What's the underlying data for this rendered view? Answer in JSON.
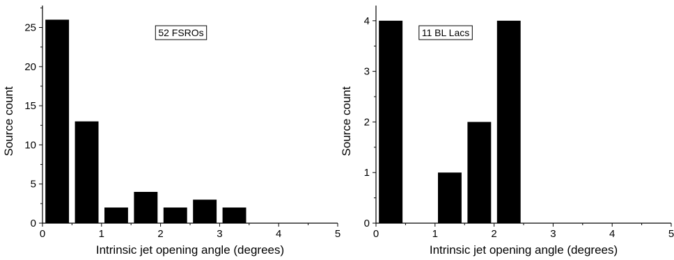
{
  "chart_data": [
    {
      "type": "bar",
      "xlabel": "Intrinsic jet opening angle (degrees)",
      "ylabel": "Source count",
      "xlim": [
        0,
        5
      ],
      "ylim": [
        0,
        27.8
      ],
      "xticks": [
        "0",
        "1",
        "2",
        "3",
        "4",
        "5"
      ],
      "yticks": [
        "0",
        "5",
        "10",
        "15",
        "20",
        "25"
      ],
      "ytick_values": [
        0,
        5,
        10,
        15,
        20,
        25
      ],
      "minor_y_step": 2.5,
      "bin_width": 0.5,
      "bar_width_fraction": 0.8,
      "bin_starts": [
        0,
        0.5,
        1.0,
        1.5,
        2.0,
        2.5,
        3.0
      ],
      "values": [
        26,
        13,
        2,
        4,
        2,
        3,
        2
      ],
      "annotation": "52 FSROs",
      "bar_color": "#000000"
    },
    {
      "type": "bar",
      "xlabel": "Intrinsic jet opening angle (degrees)",
      "ylabel": "Source count",
      "xlim": [
        0,
        5
      ],
      "ylim": [
        0,
        4.3
      ],
      "xticks": [
        "0",
        "1",
        "2",
        "3",
        "4",
        "5"
      ],
      "yticks": [
        "0",
        "1",
        "2",
        "3",
        "4"
      ],
      "ytick_values": [
        0,
        1,
        2,
        3,
        4
      ],
      "minor_y_step": 0.5,
      "bin_width": 0.5,
      "bar_width_fraction": 0.8,
      "bin_starts": [
        0,
        1.0,
        1.5,
        2.0
      ],
      "values": [
        4,
        1,
        2,
        4
      ],
      "annotation": "11 BL Lacs",
      "bar_color": "#000000"
    }
  ]
}
